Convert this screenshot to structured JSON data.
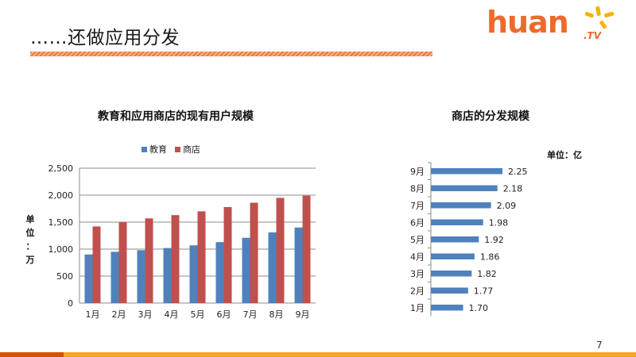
{
  "slide": {
    "title": "……还做应用分发",
    "page_number": "7",
    "colors": {
      "accent": "#ee7a3e",
      "bottom_bar": "#f5a623",
      "bottom_bar_left": "#d35400"
    }
  },
  "logo": {
    "text": "huan",
    "suffix": ".TV"
  },
  "chart_data": [
    {
      "type": "bar",
      "title": "教育和应用商店的现有用户规模",
      "ylabel": "单位：万",
      "categories": [
        "1月",
        "2月",
        "3月",
        "4月",
        "5月",
        "6月",
        "7月",
        "8月",
        "9月"
      ],
      "ylim": [
        0,
        2500
      ],
      "yticks": [
        0,
        500,
        1000,
        1500,
        2000,
        2500
      ],
      "ytick_labels": [
        "0",
        "500",
        "1,000",
        "1,500",
        "2,000",
        "2,500"
      ],
      "legend_position": "top",
      "grid": true,
      "series": [
        {
          "name": "教育",
          "color": "#4f81bd",
          "values": [
            900,
            950,
            980,
            1020,
            1070,
            1130,
            1210,
            1310,
            1400
          ]
        },
        {
          "name": "商店",
          "color": "#c0504d",
          "values": [
            1420,
            1500,
            1570,
            1630,
            1700,
            1780,
            1860,
            1950,
            1990
          ]
        }
      ]
    },
    {
      "type": "bar",
      "orientation": "horizontal",
      "title": "商店的分发规模",
      "unit_label": "单位：亿",
      "categories": [
        "9月",
        "8月",
        "7月",
        "6月",
        "5月",
        "4月",
        "3月",
        "2月",
        "1月"
      ],
      "values": [
        2.25,
        2.18,
        2.09,
        1.98,
        1.92,
        1.86,
        1.82,
        1.77,
        1.7
      ],
      "value_labels": [
        "2.25",
        "2.18",
        "2.09",
        "1.98",
        "1.92",
        "1.86",
        "1.82",
        "1.77",
        "1.70"
      ],
      "xlim": [
        0,
        2.5
      ],
      "color": "#4f81bd"
    }
  ]
}
